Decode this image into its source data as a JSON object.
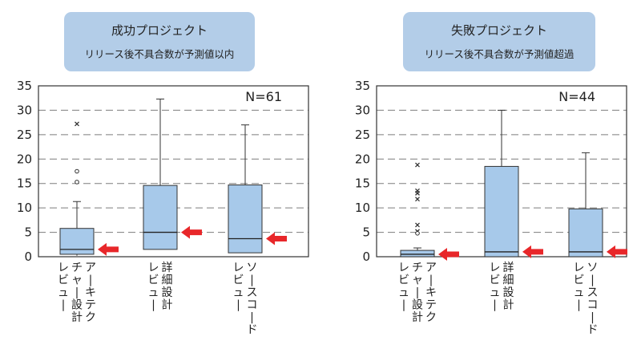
{
  "chart_data": [
    {
      "type": "box",
      "title": "成功プロジェクト",
      "subtitle": "リリース後不具合数が予測値以内",
      "n_label": "N=61",
      "ylim": [
        0,
        35
      ],
      "yticks": [
        0,
        5,
        10,
        15,
        20,
        25,
        30,
        35
      ],
      "grid": "dashed-horizontal",
      "box_color": "#a7c9ea",
      "arrow_color": "#e8272a",
      "title_box_color": "#b3cde8",
      "categories": [
        {
          "lines": [
            "アーキテク",
            "チャー設計",
            "レビュー"
          ]
        },
        {
          "lines": [
            "詳細設計",
            "レビュー"
          ]
        },
        {
          "lines": [
            "ソースコード",
            "レビュー"
          ]
        }
      ],
      "boxes": [
        {
          "whisker_low": 0.2,
          "q1": 0.5,
          "median": 1.5,
          "q3": 5.8,
          "whisker_high": 11.3,
          "outliers": [
            {
              "v": 27.2,
              "m": "x"
            },
            {
              "v": 17.5,
              "m": "o"
            },
            {
              "v": 15.3,
              "m": "o"
            }
          ]
        },
        {
          "whisker_low": 1.5,
          "q1": 1.5,
          "median": 5.0,
          "q3": 14.6,
          "whisker_high": 32.3,
          "outliers": []
        },
        {
          "whisker_low": 0.8,
          "q1": 0.8,
          "median": 3.7,
          "q3": 14.7,
          "whisker_high": 27.0,
          "outliers": []
        }
      ]
    },
    {
      "type": "box",
      "title": "失敗プロジェクト",
      "subtitle": "リリース後不具合数が予測値超過",
      "n_label": "N=44",
      "ylim": [
        0,
        35
      ],
      "yticks": [
        0,
        5,
        10,
        15,
        20,
        25,
        30,
        35
      ],
      "grid": "dashed-horizontal",
      "box_color": "#a7c9ea",
      "arrow_color": "#e8272a",
      "title_box_color": "#b3cde8",
      "categories": [
        {
          "lines": [
            "アーキテク",
            "チャー設計",
            "レビュー"
          ]
        },
        {
          "lines": [
            "詳細設計",
            "レビュー"
          ]
        },
        {
          "lines": [
            "ソースコード",
            "レビュー"
          ]
        }
      ],
      "boxes": [
        {
          "whisker_low": 0.0,
          "q1": 0.0,
          "median": 0.5,
          "q3": 1.3,
          "whisker_high": 1.8,
          "outliers": [
            {
              "v": 18.8,
              "m": "x"
            },
            {
              "v": 13.5,
              "m": "x"
            },
            {
              "v": 13.0,
              "m": "x"
            },
            {
              "v": 11.8,
              "m": "x"
            },
            {
              "v": 6.5,
              "m": "x"
            },
            {
              "v": 5.2,
              "m": "x"
            },
            {
              "v": 4.8,
              "m": "o"
            }
          ]
        },
        {
          "whisker_low": 0.0,
          "q1": 0.0,
          "median": 1.0,
          "q3": 18.5,
          "whisker_high": 30.0,
          "outliers": []
        },
        {
          "whisker_low": 0.0,
          "q1": 0.0,
          "median": 1.0,
          "q3": 9.8,
          "whisker_high": 21.3,
          "outliers": []
        }
      ]
    }
  ]
}
